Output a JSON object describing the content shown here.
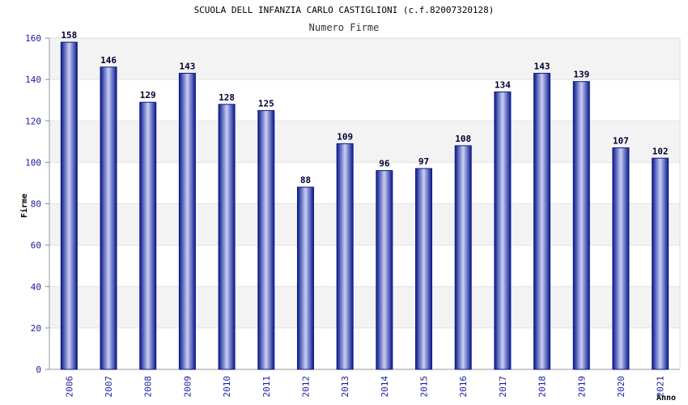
{
  "chart_data": {
    "type": "bar",
    "title": "SCUOLA DELL INFANZIA CARLO CASTIGLIONI (c.f.82007320128)",
    "subtitle": "Numero Firme",
    "xlabel": "Anno",
    "ylabel": "Firme",
    "categories": [
      "2006",
      "2007",
      "2008",
      "2009",
      "2010",
      "2011",
      "2012",
      "2013",
      "2014",
      "2015",
      "2016",
      "2017",
      "2018",
      "2019",
      "2020",
      "2021"
    ],
    "values": [
      158,
      146,
      129,
      143,
      128,
      125,
      88,
      109,
      96,
      97,
      108,
      134,
      143,
      139,
      107,
      102
    ],
    "ylim": [
      0,
      160
    ],
    "yticks": [
      0,
      20,
      40,
      60,
      80,
      100,
      120,
      140,
      160
    ],
    "grid": true,
    "colors": {
      "bar_dark": "#0a1a8c",
      "bar_light": "#c9cff5",
      "band": "#f3f3f3",
      "tick_text": "#1a1aa6"
    }
  }
}
